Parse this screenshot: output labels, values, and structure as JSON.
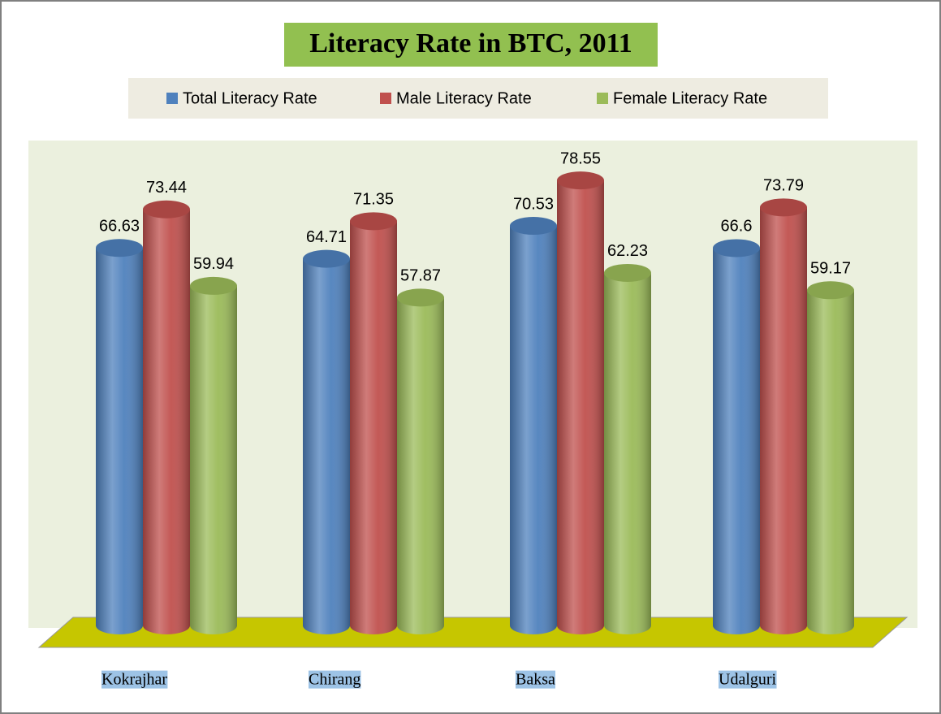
{
  "chart_data": {
    "type": "bar3d",
    "title": "Literacy Rate in BTC, 2011",
    "categories": [
      "Kokrajhar",
      "Chirang",
      "Baksa",
      "Udalguri"
    ],
    "series": [
      {
        "name": "Total Literacy Rate",
        "color": "#4f81bd",
        "values": [
          66.63,
          64.71,
          70.53,
          66.6
        ]
      },
      {
        "name": "Male Literacy Rate",
        "color": "#c0504d",
        "values": [
          73.44,
          71.35,
          78.55,
          73.79
        ]
      },
      {
        "name": "Female Literacy Rate",
        "color": "#9bbb59",
        "values": [
          59.94,
          57.87,
          62.23,
          59.17
        ]
      }
    ],
    "ylim": [
      0,
      80
    ],
    "legend": "top"
  }
}
